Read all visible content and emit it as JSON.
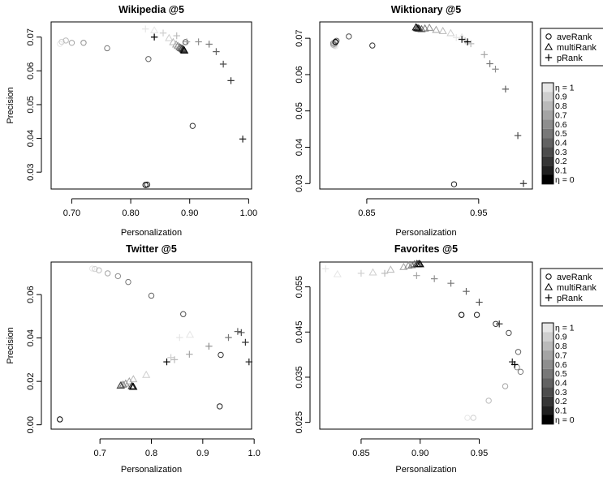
{
  "figure": {
    "eta_symbol": "η"
  },
  "chart_data": [
    {
      "type": "scatter",
      "title": "Wikipedia @5",
      "xlabel": "Personalization",
      "ylabel": "Precision",
      "xlim": [
        0.665,
        1.005
      ],
      "ylim": [
        0.025,
        0.0745
      ],
      "xticks": [
        0.7,
        0.8,
        0.9,
        1.0
      ],
      "xtick_labels": [
        "0.70",
        "0.80",
        "0.90",
        "1.00"
      ],
      "yticks": [
        0.03,
        0.04,
        0.05,
        0.06,
        0.07
      ],
      "ytick_labels": [
        "0.03",
        "0.04",
        "0.05",
        "0.06",
        "0.07"
      ],
      "series": [
        {
          "name": "aveRank",
          "marker": "circle",
          "eta": [
            1,
            0.9,
            0.8,
            0.7,
            0.6,
            0.5,
            0.4,
            0.3,
            0.2,
            0.1,
            0
          ],
          "x": [
            0.68,
            0.683,
            0.69,
            0.7,
            0.72,
            0.76,
            0.83,
            0.893,
            0.905,
            0.828,
            0.825
          ],
          "y": [
            0.068,
            0.0686,
            0.069,
            0.0683,
            0.0683,
            0.0667,
            0.0635,
            0.0685,
            0.0437,
            0.0263,
            0.0262
          ]
        },
        {
          "name": "multiRank",
          "marker": "triangle",
          "eta": [
            1,
            0.9,
            0.8,
            0.7,
            0.6,
            0.5,
            0.4,
            0.3,
            0.2,
            0.1,
            0
          ],
          "x": [
            0.84,
            0.865,
            0.872,
            0.877,
            0.88,
            0.883,
            0.885,
            0.887,
            0.889,
            0.89,
            0.891
          ],
          "y": [
            0.072,
            0.0697,
            0.0685,
            0.0678,
            0.0674,
            0.067,
            0.0668,
            0.0666,
            0.0664,
            0.0662,
            0.066
          ]
        },
        {
          "name": "pRank",
          "marker": "plus",
          "eta": [
            1,
            0.9,
            0.8,
            0.7,
            0.6,
            0.5,
            0.4,
            0.3,
            0.2,
            0.1,
            0
          ],
          "x": [
            0.825,
            0.855,
            0.878,
            0.895,
            0.915,
            0.933,
            0.945,
            0.957,
            0.97,
            0.99,
            0.84
          ],
          "y": [
            0.0724,
            0.0712,
            0.0704,
            0.0686,
            0.0686,
            0.0679,
            0.0657,
            0.062,
            0.0571,
            0.0398,
            0.07
          ]
        }
      ]
    },
    {
      "type": "scatter",
      "title": "Wiktionary @5",
      "xlabel": "Personalization",
      "ylabel": "",
      "xlim": [
        0.808,
        0.998
      ],
      "ylim": [
        0.0285,
        0.0745
      ],
      "xticks": [
        0.85,
        0.95
      ],
      "xtick_labels": [
        "0.85",
        "0.95"
      ],
      "yticks": [
        0.03,
        0.04,
        0.05,
        0.06,
        0.07
      ],
      "ytick_labels": [
        "0.03",
        "0.04",
        "0.05",
        "0.06",
        "0.07"
      ],
      "series": [
        {
          "name": "aveRank",
          "marker": "circle",
          "eta": [
            1,
            0.9,
            0.8,
            0.7,
            0.6,
            0.5,
            0.4,
            0.3,
            0.2,
            0.1,
            0
          ],
          "x": [
            0.822,
            0.821,
            0.82,
            0.821,
            0.82,
            0.822,
            0.823,
            0.834,
            0.855,
            0.928,
            0.822
          ],
          "y": [
            0.0678,
            0.068,
            0.0682,
            0.0684,
            0.0686,
            0.0688,
            0.0693,
            0.0705,
            0.068,
            0.0298,
            0.069
          ]
        },
        {
          "name": "multiRank",
          "marker": "triangle",
          "eta": [
            1,
            0.9,
            0.8,
            0.7,
            0.6,
            0.5,
            0.4,
            0.3,
            0.2,
            0.1,
            0
          ],
          "x": [
            0.935,
            0.925,
            0.918,
            0.912,
            0.906,
            0.902,
            0.899,
            0.897,
            0.896,
            0.895,
            0.894
          ],
          "y": [
            0.0703,
            0.0714,
            0.072,
            0.0723,
            0.0729,
            0.0727,
            0.0725,
            0.0726,
            0.0727,
            0.0728,
            0.073
          ]
        },
        {
          "name": "pRank",
          "marker": "plus",
          "eta": [
            1,
            0.9,
            0.8,
            0.7,
            0.6,
            0.5,
            0.4,
            0.3,
            0.2,
            0.1,
            0
          ],
          "x": [
            0.93,
            0.938,
            0.943,
            0.955,
            0.965,
            0.96,
            0.974,
            0.985,
            0.99,
            0.935,
            0.94
          ],
          "y": [
            0.0702,
            0.0693,
            0.0685,
            0.0655,
            0.0615,
            0.063,
            0.056,
            0.0432,
            0.03,
            0.0697,
            0.069
          ]
        }
      ]
    },
    {
      "type": "scatter",
      "title": "Twitter @5",
      "xlabel": "Personalization",
      "ylabel": "Precision",
      "xlim": [
        0.605,
        0.995
      ],
      "ylim": [
        -0.002,
        0.075
      ],
      "xticks": [
        0.7,
        0.8,
        0.9,
        1.0
      ],
      "xtick_labels": [
        "0.7",
        "0.8",
        "0.9",
        "1.0"
      ],
      "yticks": [
        0.0,
        0.02,
        0.04,
        0.06
      ],
      "ytick_labels": [
        "0.00",
        "0.02",
        "0.04",
        "0.06"
      ],
      "series": [
        {
          "name": "aveRank",
          "marker": "circle",
          "eta": [
            1,
            0.9,
            0.8,
            0.7,
            0.6,
            0.5,
            0.4,
            0.3,
            0.2,
            0.1,
            0
          ],
          "x": [
            0.685,
            0.69,
            0.698,
            0.715,
            0.735,
            0.755,
            0.8,
            0.862,
            0.935,
            0.933,
            0.622
          ],
          "y": [
            0.072,
            0.0718,
            0.0712,
            0.0698,
            0.0685,
            0.0658,
            0.0595,
            0.051,
            0.0322,
            0.0085,
            0.0025
          ]
        },
        {
          "name": "multiRank",
          "marker": "triangle",
          "eta": [
            1,
            0.9,
            0.8,
            0.7,
            0.6,
            0.5,
            0.4,
            0.3,
            0.2,
            0.1,
            0
          ],
          "x": [
            0.875,
            0.79,
            0.765,
            0.757,
            0.75,
            0.745,
            0.741,
            0.74,
            0.762,
            0.764,
            0.765
          ],
          "y": [
            0.0415,
            0.023,
            0.021,
            0.02,
            0.019,
            0.0185,
            0.0182,
            0.018,
            0.0178,
            0.0176,
            0.0175
          ]
        },
        {
          "name": "pRank",
          "marker": "plus",
          "eta": [
            1,
            0.9,
            0.8,
            0.7,
            0.6,
            0.5,
            0.4,
            0.3,
            0.2,
            0.1,
            0
          ],
          "x": [
            0.855,
            0.838,
            0.845,
            0.874,
            0.912,
            0.95,
            0.968,
            0.975,
            0.983,
            0.99,
            0.83
          ],
          "y": [
            0.0402,
            0.031,
            0.03,
            0.0325,
            0.0362,
            0.0402,
            0.043,
            0.0425,
            0.038,
            0.029,
            0.029
          ]
        }
      ]
    },
    {
      "type": "scatter",
      "title": "Favorites @5",
      "xlabel": "Personalization",
      "ylabel": "",
      "xlim": [
        0.815,
        0.995
      ],
      "ylim": [
        0.0235,
        0.0605
      ],
      "xticks": [
        0.85,
        0.9,
        0.95
      ],
      "xtick_labels": [
        "0.85",
        "0.90",
        "0.95"
      ],
      "yticks": [
        0.025,
        0.035,
        0.045,
        0.055
      ],
      "ytick_labels": [
        "0.025",
        "0.035",
        "0.045",
        "0.055"
      ],
      "series": [
        {
          "name": "aveRank",
          "marker": "circle",
          "eta": [
            1,
            0.9,
            0.8,
            0.7,
            0.6,
            0.5,
            0.4,
            0.3,
            0.2,
            0.1,
            0
          ],
          "x": [
            0.94,
            0.945,
            0.958,
            0.972,
            0.982,
            0.985,
            0.983,
            0.975,
            0.964,
            0.948,
            0.935
          ],
          "y": [
            0.026,
            0.026,
            0.0298,
            0.033,
            0.0372,
            0.0362,
            0.0406,
            0.0448,
            0.0468,
            0.0488,
            0.0488
          ]
        },
        {
          "name": "multiRank",
          "marker": "triangle",
          "eta": [
            1,
            0.9,
            0.8,
            0.7,
            0.6,
            0.5,
            0.4,
            0.3,
            0.2,
            0.1,
            0
          ],
          "x": [
            0.83,
            0.86,
            0.875,
            0.886,
            0.89,
            0.893,
            0.895,
            0.897,
            0.898,
            0.899,
            0.9
          ],
          "y": [
            0.0578,
            0.0582,
            0.0588,
            0.0594,
            0.0597,
            0.0598,
            0.06,
            0.0601,
            0.06,
            0.0601,
            0.06
          ]
        },
        {
          "name": "pRank",
          "marker": "plus",
          "eta": [
            1,
            0.9,
            0.8,
            0.7,
            0.6,
            0.5,
            0.4,
            0.3,
            0.2,
            0.1,
            0
          ],
          "x": [
            0.82,
            0.85,
            0.87,
            0.897,
            0.912,
            0.926,
            0.939,
            0.95,
            0.967,
            0.978,
            0.98
          ],
          "y": [
            0.059,
            0.058,
            0.058,
            0.0575,
            0.0568,
            0.0558,
            0.054,
            0.0516,
            0.0468,
            0.0384,
            0.0378
          ]
        }
      ]
    }
  ],
  "legend": {
    "entries": [
      {
        "label": "aveRank",
        "marker": "circle"
      },
      {
        "label": "multiRank",
        "marker": "triangle"
      },
      {
        "label": "pRank",
        "marker": "plus"
      }
    ],
    "colorbar": {
      "labels": [
        "η = 1",
        "0.9",
        "0.8",
        "0.7",
        "0.6",
        "0.5",
        "0.4",
        "0.3",
        "0.2",
        "0.1",
        "η = 0"
      ],
      "colors": [
        "#e6e6e6",
        "#cfcfcf",
        "#bababa",
        "#a4a4a4",
        "#8e8e8e",
        "#787878",
        "#626262",
        "#4c4c4c",
        "#353535",
        "#1f1f1f",
        "#000000"
      ]
    }
  }
}
